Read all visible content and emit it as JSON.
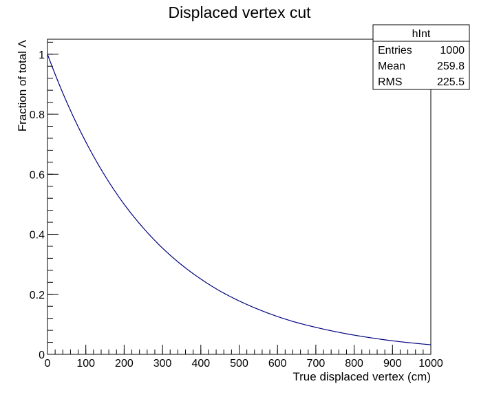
{
  "chart_data": {
    "type": "line",
    "title": "Displaced vertex cut",
    "xlabel": "True displaced vertex (cm)",
    "ylabel": "Fraction of total Λ",
    "xlim": [
      0,
      1000
    ],
    "ylim": [
      0,
      1.05
    ],
    "x_ticks": [
      0,
      100,
      200,
      300,
      400,
      500,
      600,
      700,
      800,
      900,
      1000
    ],
    "x_tick_labels": [
      "0",
      "100",
      "200",
      "300",
      "400",
      "500",
      "600",
      "700",
      "800",
      "900",
      "1000"
    ],
    "y_ticks": [
      0,
      0.2,
      0.4,
      0.6,
      0.8,
      1
    ],
    "y_tick_labels": [
      "0",
      "0.2",
      "0.4",
      "0.6",
      "0.8",
      "1"
    ],
    "grid": false,
    "series": [
      {
        "line_color": "#000080",
        "x": [
          0,
          50,
          100,
          150,
          200,
          250,
          300,
          350,
          400,
          450,
          500,
          550,
          600,
          650,
          700,
          750,
          800,
          850,
          900,
          950,
          1000
        ],
        "y": [
          1.0,
          0.841,
          0.708,
          0.595,
          0.5,
          0.421,
          0.354,
          0.298,
          0.251,
          0.211,
          0.178,
          0.15,
          0.126,
          0.106,
          0.09,
          0.076,
          0.064,
          0.054,
          0.045,
          0.038,
          0.032
        ]
      }
    ],
    "stats_box": {
      "position": "top-right",
      "title": "hInt",
      "rows": [
        {
          "label": "Entries",
          "value": "1000"
        },
        {
          "label": "Mean",
          "value": "259.8"
        },
        {
          "label": "RMS",
          "value": "225.5"
        }
      ]
    }
  }
}
